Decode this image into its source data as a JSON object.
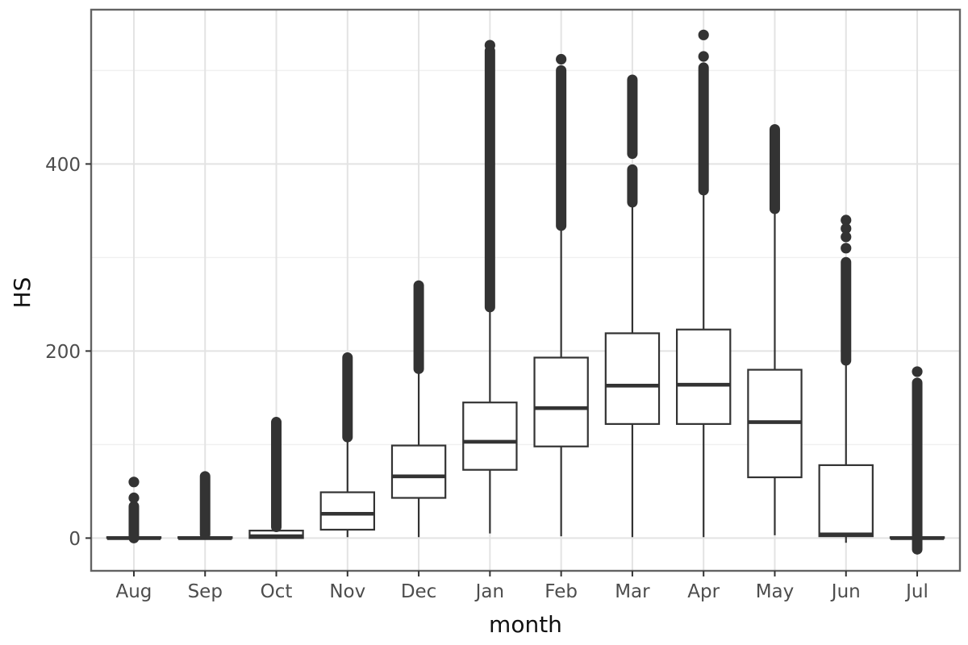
{
  "chart_data": {
    "type": "boxplot",
    "title": "",
    "xlabel": "month",
    "ylabel": "HS",
    "categories": [
      "Aug",
      "Sep",
      "Oct",
      "Nov",
      "Dec",
      "Jan",
      "Feb",
      "Mar",
      "Apr",
      "May",
      "Jun",
      "Jul"
    ],
    "y_ticks": [
      0,
      200,
      400
    ],
    "y_minor": [
      100,
      300,
      500
    ],
    "ylim": [
      -35,
      565
    ],
    "grid": true,
    "legend": "none",
    "series": [
      {
        "label": "Aug",
        "q1": 0,
        "median": 0,
        "q3": 1,
        "whisker_low": 0,
        "whisker_high": 1,
        "outlier_segments": [
          [
            0,
            34
          ]
        ],
        "outlier_dots": [
          43,
          60
        ]
      },
      {
        "label": "Sep",
        "q1": 0,
        "median": 0,
        "q3": 1,
        "whisker_low": 0,
        "whisker_high": 1,
        "outlier_segments": [
          [
            4,
            66
          ]
        ],
        "outlier_dots": []
      },
      {
        "label": "Oct",
        "q1": 0,
        "median": 2,
        "q3": 8,
        "whisker_low": 0,
        "whisker_high": 8,
        "outlier_segments": [
          [
            12,
            124
          ]
        ],
        "outlier_dots": []
      },
      {
        "label": "Nov",
        "q1": 9,
        "median": 26,
        "q3": 49,
        "whisker_low": 1,
        "whisker_high": 108,
        "outlier_segments": [
          [
            108,
            193
          ]
        ],
        "outlier_dots": []
      },
      {
        "label": "Dec",
        "q1": 43,
        "median": 66,
        "q3": 99,
        "whisker_low": 1,
        "whisker_high": 181,
        "outlier_segments": [
          [
            181,
            270
          ]
        ],
        "outlier_dots": []
      },
      {
        "label": "Jan",
        "q1": 73,
        "median": 103,
        "q3": 145,
        "whisker_low": 5,
        "whisker_high": 247,
        "outlier_segments": [
          [
            247,
            521
          ]
        ],
        "outlier_dots": [
          527
        ]
      },
      {
        "label": "Feb",
        "q1": 98,
        "median": 139,
        "q3": 193,
        "whisker_low": 2,
        "whisker_high": 334,
        "outlier_segments": [
          [
            334,
            500
          ]
        ],
        "outlier_dots": [
          512
        ]
      },
      {
        "label": "Mar",
        "q1": 122,
        "median": 163,
        "q3": 219,
        "whisker_low": 1,
        "whisker_high": 360,
        "outlier_segments": [
          [
            359,
            394
          ],
          [
            411,
            490
          ]
        ],
        "outlier_dots": []
      },
      {
        "label": "Apr",
        "q1": 122,
        "median": 164,
        "q3": 223,
        "whisker_low": 1,
        "whisker_high": 372,
        "outlier_segments": [
          [
            372,
            503
          ]
        ],
        "outlier_dots": [
          515,
          538
        ]
      },
      {
        "label": "May",
        "q1": 65,
        "median": 124,
        "q3": 180,
        "whisker_low": 3,
        "whisker_high": 352,
        "outlier_segments": [
          [
            352,
            437
          ]
        ],
        "outlier_dots": []
      },
      {
        "label": "Jun",
        "q1": 2,
        "median": 4,
        "q3": 78,
        "whisker_low": -5,
        "whisker_high": 190,
        "outlier_segments": [
          [
            190,
            295
          ]
        ],
        "outlier_dots": [
          310,
          322,
          331,
          340
        ]
      },
      {
        "label": "Jul",
        "q1": 0,
        "median": 0,
        "q3": 1,
        "whisker_low": 0,
        "whisker_high": 1,
        "outlier_segments": [
          [
            -12,
            166
          ]
        ],
        "outlier_dots": [
          178
        ]
      }
    ]
  },
  "colors": {
    "ink": "#333333",
    "panel_border": "#636363",
    "grid_major": "#e3e3e3",
    "grid_minor": "#f0f0f0",
    "tick_text": "#4d4d4d",
    "title_text": "#111111",
    "background": "#ffffff",
    "box_fill": "#ffffff"
  }
}
